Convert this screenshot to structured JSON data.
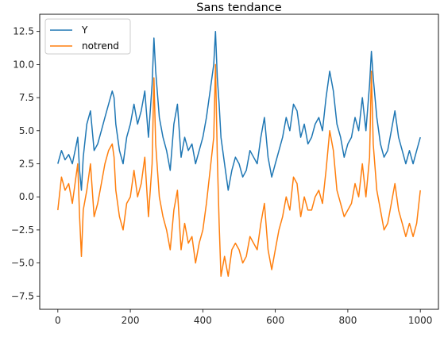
{
  "chart_data": {
    "type": "line",
    "title": "Sans tendance",
    "xlabel": "",
    "ylabel": "",
    "xlim": [
      -50,
      1050
    ],
    "ylim": [
      -8.5,
      13.8
    ],
    "xticks": [
      0,
      200,
      400,
      600,
      800,
      1000
    ],
    "yticks": [
      -7.5,
      -5.0,
      -2.5,
      0.0,
      2.5,
      5.0,
      7.5,
      10.0,
      12.5
    ],
    "ytick_labels": [
      "−7.5",
      "−5.0",
      "−2.5",
      "0.0",
      "2.5",
      "5.0",
      "7.5",
      "10.0",
      "12.5"
    ],
    "grid": false,
    "legend": "top-left",
    "series": [
      {
        "name": "Y",
        "color": "#1f77b4",
        "x": [
          0,
          10,
          20,
          30,
          40,
          50,
          55,
          60,
          65,
          70,
          80,
          90,
          100,
          110,
          120,
          130,
          140,
          150,
          155,
          160,
          170,
          180,
          190,
          200,
          210,
          220,
          230,
          240,
          250,
          260,
          265,
          270,
          280,
          290,
          300,
          310,
          320,
          330,
          340,
          350,
          360,
          370,
          380,
          390,
          400,
          410,
          420,
          430,
          435,
          440,
          445,
          450,
          460,
          470,
          480,
          490,
          500,
          510,
          520,
          530,
          540,
          550,
          560,
          570,
          580,
          590,
          600,
          610,
          620,
          630,
          640,
          650,
          660,
          670,
          680,
          690,
          700,
          710,
          720,
          730,
          740,
          750,
          760,
          770,
          780,
          790,
          800,
          810,
          820,
          830,
          840,
          850,
          860,
          865,
          870,
          880,
          890,
          900,
          910,
          920,
          930,
          940,
          950,
          960,
          970,
          980,
          990,
          1000
        ],
        "y": [
          2.5,
          3.5,
          2.8,
          3.2,
          2.5,
          3.8,
          4.5,
          2.0,
          0.5,
          3.0,
          5.5,
          6.5,
          3.5,
          4.0,
          5.0,
          6.0,
          7.0,
          8.0,
          7.5,
          5.5,
          3.5,
          2.5,
          4.5,
          5.5,
          7.0,
          5.5,
          6.5,
          8.0,
          4.5,
          8.5,
          12.0,
          9.5,
          6.0,
          4.5,
          3.5,
          2.0,
          5.5,
          7.0,
          3.0,
          4.5,
          3.5,
          4.0,
          2.5,
          3.5,
          4.5,
          6.0,
          8.0,
          10.0,
          12.5,
          9.0,
          7.0,
          4.5,
          2.5,
          0.5,
          2.0,
          3.0,
          2.5,
          1.5,
          2.0,
          3.5,
          3.0,
          2.5,
          4.5,
          6.0,
          3.0,
          1.5,
          2.5,
          3.5,
          4.5,
          6.0,
          5.0,
          7.0,
          6.5,
          4.5,
          5.5,
          4.0,
          4.5,
          5.5,
          6.0,
          5.0,
          7.5,
          9.5,
          8.0,
          5.5,
          4.5,
          3.0,
          4.0,
          4.5,
          6.0,
          5.0,
          7.5,
          5.0,
          8.5,
          11.0,
          9.0,
          6.0,
          4.0,
          3.0,
          3.5,
          5.0,
          6.5,
          4.5,
          3.5,
          2.5,
          3.5,
          2.5,
          3.5,
          4.5
        ]
      },
      {
        "name": "notrend",
        "color": "#ff7f0e",
        "x": [
          0,
          10,
          20,
          30,
          40,
          50,
          55,
          60,
          65,
          70,
          80,
          90,
          100,
          110,
          120,
          130,
          140,
          150,
          155,
          160,
          170,
          180,
          190,
          200,
          210,
          220,
          230,
          240,
          250,
          260,
          265,
          270,
          280,
          290,
          300,
          310,
          320,
          330,
          340,
          350,
          360,
          370,
          380,
          390,
          400,
          410,
          420,
          430,
          435,
          440,
          445,
          450,
          460,
          470,
          480,
          490,
          500,
          510,
          520,
          530,
          540,
          550,
          560,
          570,
          580,
          590,
          600,
          610,
          620,
          630,
          640,
          650,
          660,
          670,
          680,
          690,
          700,
          710,
          720,
          730,
          740,
          750,
          760,
          770,
          780,
          790,
          800,
          810,
          820,
          830,
          840,
          850,
          860,
          865,
          870,
          880,
          890,
          900,
          910,
          920,
          930,
          940,
          950,
          960,
          970,
          980,
          990,
          1000
        ],
        "y": [
          -1.0,
          1.5,
          0.5,
          1.0,
          -0.5,
          1.5,
          2.5,
          -1.5,
          -4.5,
          -1.0,
          0.5,
          2.5,
          -1.5,
          -0.5,
          1.0,
          2.5,
          3.5,
          4.0,
          3.0,
          0.5,
          -1.5,
          -2.5,
          -0.5,
          0.0,
          2.0,
          0.0,
          1.0,
          3.0,
          -1.5,
          2.5,
          9.0,
          4.0,
          0.0,
          -1.5,
          -2.5,
          -4.0,
          -1.0,
          0.5,
          -4.0,
          -2.0,
          -3.5,
          -3.0,
          -5.0,
          -3.5,
          -2.5,
          -0.5,
          2.0,
          4.5,
          10.0,
          3.0,
          -2.0,
          -6.0,
          -4.5,
          -6.0,
          -4.0,
          -3.5,
          -4.0,
          -5.0,
          -4.5,
          -3.0,
          -3.5,
          -4.0,
          -2.0,
          -0.5,
          -4.0,
          -5.5,
          -4.0,
          -2.5,
          -1.5,
          0.0,
          -1.0,
          1.5,
          1.0,
          -1.5,
          0.0,
          -1.0,
          -1.0,
          0.0,
          0.5,
          -0.5,
          2.0,
          5.0,
          3.5,
          0.5,
          -0.5,
          -1.5,
          -1.0,
          -0.5,
          1.0,
          0.0,
          2.5,
          0.0,
          3.0,
          9.5,
          4.0,
          0.5,
          -1.0,
          -2.5,
          -2.0,
          -0.5,
          1.0,
          -1.0,
          -2.0,
          -3.0,
          -2.0,
          -3.0,
          -2.0,
          0.5
        ]
      }
    ]
  }
}
